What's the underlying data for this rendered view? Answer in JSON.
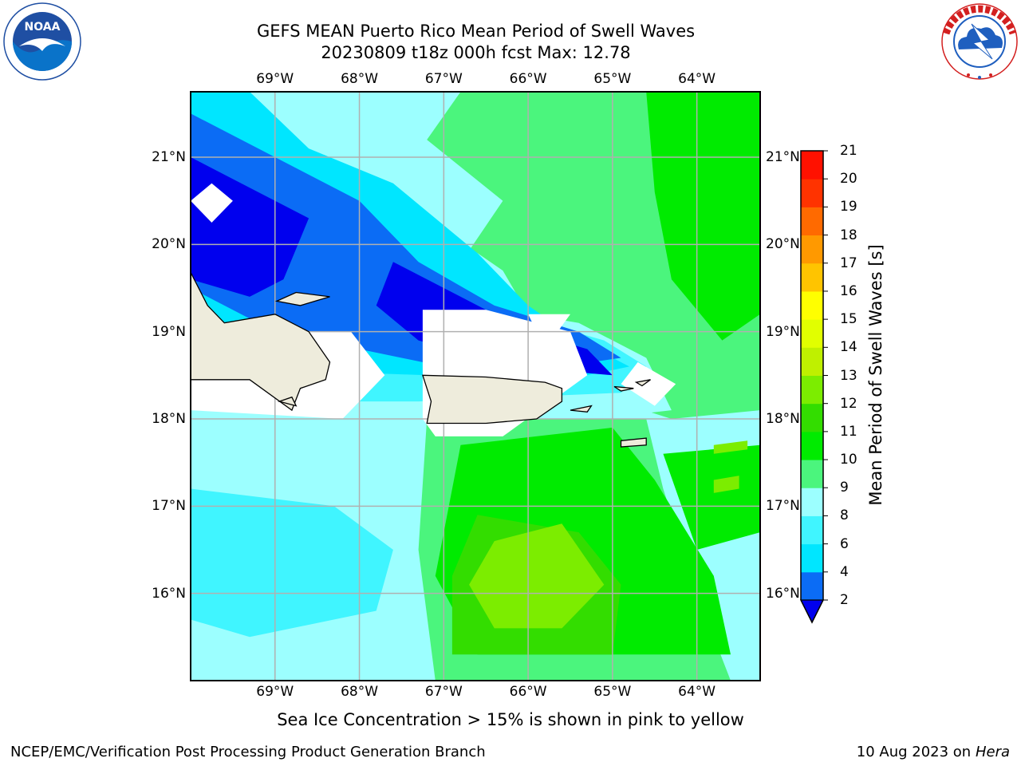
{
  "header": {
    "title_line1": "GEFS MEAN Puerto Rico Mean Period of Swell Waves",
    "title_line2": "20230809 t18z 000h fcst   Max: 12.78"
  },
  "logos": {
    "left": {
      "name": "NOAA",
      "text": "NOAA",
      "ring_text": "NATIONAL OCEANIC AND ATMOSPHERIC ADMINISTRATION · U.S. DEPARTMENT OF COMMERCE",
      "colors": [
        "#1f4fa3",
        "#0a73c9",
        "#ffffff"
      ]
    },
    "right": {
      "name": "National Weather Service",
      "ring_text": "NATIONAL WEATHER SERVICE",
      "colors": [
        "#d32020",
        "#1f5fbf",
        "#ffffff"
      ]
    }
  },
  "map": {
    "lon_labels": [
      "69°W",
      "68°W",
      "67°W",
      "66°W",
      "65°W",
      "64°W"
    ],
    "lat_labels": [
      "21°N",
      "20°N",
      "19°N",
      "18°N",
      "17°N",
      "16°N"
    ],
    "lon_values": [
      -69,
      -68,
      -67,
      -66,
      -65,
      -64
    ],
    "lat_values": [
      21,
      20,
      19,
      18,
      17,
      16
    ],
    "extent": {
      "lon_min": -70.0,
      "lon_max": -63.25,
      "lat_min": 15.0,
      "lat_max": 21.75
    },
    "land_color": "#eeecdc",
    "grid_color": "#b0b0b0"
  },
  "colorbar": {
    "label": "Mean Period of Swell Waves [s]",
    "ticks": [
      "21",
      "20",
      "19",
      "18",
      "17",
      "16",
      "15",
      "14",
      "13",
      "12",
      "11",
      "10",
      "9",
      "8",
      "6",
      "4",
      "2"
    ],
    "levels": [
      {
        "lo": 2,
        "color": "#0b6cf5"
      },
      {
        "lo": 4,
        "color": "#00e6ff"
      },
      {
        "lo": 6,
        "color": "#40f5ff"
      },
      {
        "lo": 8,
        "color": "#9cffff"
      },
      {
        "lo": 9,
        "color": "#4bf57d"
      },
      {
        "lo": 10,
        "color": "#00eb00"
      },
      {
        "lo": 11,
        "color": "#33dd00"
      },
      {
        "lo": 12,
        "color": "#7ced00"
      },
      {
        "lo": 13,
        "color": "#bff000"
      },
      {
        "lo": 14,
        "color": "#e1ff00"
      },
      {
        "lo": 15,
        "color": "#ffff00"
      },
      {
        "lo": 16,
        "color": "#ffc400"
      },
      {
        "lo": 17,
        "color": "#ff9900"
      },
      {
        "lo": 18,
        "color": "#ff6a00"
      },
      {
        "lo": 19,
        "color": "#ff3300"
      },
      {
        "lo": 20,
        "color": "#ff1100"
      }
    ],
    "under_color": "#0000ee"
  },
  "footer": {
    "subtitle": "Sea Ice Concentration > 15% is shown in pink to yellow",
    "credit": "NCEP/EMC/Verification Post Processing Product Generation Branch",
    "date": "10 Aug 2023 on",
    "machine": "Hera"
  }
}
